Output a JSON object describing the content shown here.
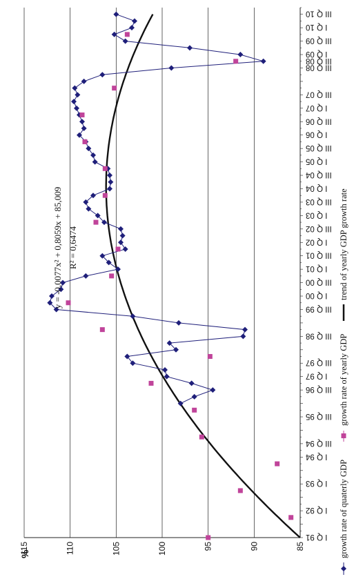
{
  "chart_data": {
    "type": "line",
    "rotation": "rotated 90 degrees counter-clockwise",
    "ylabel": "%",
    "ylim": [
      85,
      115
    ],
    "yticks": [
      85,
      90,
      95,
      100,
      105,
      110,
      115
    ],
    "grid": true,
    "legend_position": "bottom",
    "x_labels": [
      "I Q 91",
      "I Q 92",
      "I Q 93",
      "I Q 94",
      "III Q 94",
      "III Q 95",
      "III Q 96",
      "I Q 97",
      "III Q 97",
      "III Q 98",
      "III Q 99",
      "I Q 00",
      "III Q 00",
      "I Q 01",
      "III Q 01",
      "I Q 02",
      "III Q 02",
      "I Q 03",
      "III Q 03",
      "I Q 04",
      "III Q 04",
      "I Q 05",
      "III Q 05",
      "I Q 06",
      "III Q 06",
      "I Q 07",
      "III Q 07",
      "III Q 08",
      "III Q 08",
      "III Q 09",
      "I Q 09",
      "III Q 10",
      "I Q 10"
    ],
    "x_label_positions": [
      0,
      4,
      8,
      12,
      14,
      18,
      22,
      24,
      26,
      30,
      34,
      36,
      38,
      40,
      42,
      44,
      46,
      48,
      50,
      52,
      54,
      56,
      58,
      60,
      62,
      64,
      66,
      70,
      71,
      74,
      72,
      78,
      76
    ],
    "series": [
      {
        "name": "growth rate of quaterly GDP",
        "marker": "diamond",
        "color": "#1f1f7a",
        "x": [
          20,
          21,
          22,
          23,
          24,
          25,
          26,
          27,
          28,
          29,
          30,
          31,
          32,
          33,
          34,
          35,
          36,
          37,
          38,
          39,
          40,
          41,
          42,
          43,
          44,
          45,
          46,
          47,
          48,
          49,
          50,
          51,
          52,
          53,
          54,
          55,
          56,
          57,
          58,
          59,
          60,
          61,
          62,
          63,
          64,
          65,
          66,
          67,
          68,
          69,
          70,
          71,
          72,
          73,
          74,
          75,
          76,
          77,
          78
        ],
        "y": [
          98.0,
          96.5,
          94.5,
          96.8,
          99.5,
          99.7,
          103.2,
          103.8,
          98.5,
          99.2,
          91.2,
          91.0,
          98.2,
          103.2,
          111.5,
          112.2,
          112.0,
          111.0,
          110.8,
          108.3,
          104.8,
          105.8,
          106.5,
          104.0,
          104.5,
          104.3,
          104.5,
          106.3,
          107.0,
          108.0,
          108.3,
          107.5,
          105.7,
          105.6,
          105.7,
          105.9,
          107.3,
          107.5,
          108.0,
          108.3,
          109.0,
          108.5,
          108.7,
          109.0,
          109.3,
          109.6,
          109.2,
          109.5,
          108.5,
          106.5,
          99.0,
          89.0,
          91.5,
          97.0,
          104.0,
          105.2,
          103.3,
          103.0,
          105.0
        ],
        "values_hidden": false
      },
      {
        "name": "growth rate of yearly GDP",
        "marker": "square",
        "color": "#c0449a",
        "x": [
          0,
          3,
          7,
          11,
          15,
          19,
          23,
          27,
          31,
          35,
          39,
          43,
          47,
          51,
          55,
          59,
          63,
          67,
          71,
          75
        ],
        "y": [
          95.0,
          86.0,
          91.5,
          87.5,
          95.7,
          96.5,
          101.2,
          94.8,
          106.5,
          110.2,
          105.5,
          104.8,
          107.2,
          106.2,
          106.2,
          108.4,
          108.7,
          105.2,
          92.0,
          103.8
        ]
      },
      {
        "name": "trend of yearly GDP growth rate",
        "type": "line",
        "color": "#111111",
        "equation": "y = -0,0077x² + 0,8059x + 85,009",
        "r_squared": "R² = 0,6474"
      }
    ],
    "annotations": [
      "y = -0,0077x² + 0,8059x + 85,009",
      "R² = 0,6474"
    ]
  },
  "legend": {
    "item1": "growth rate of quaterly GDP",
    "item2": "growth rate of yearly GDP",
    "item3": "trend of yearly GDP growth rate"
  },
  "equation_text": "y = -0,0077x² + 0,8059x + 85,009",
  "r2_text": "R² = 0,6474",
  "percent_label": "%"
}
